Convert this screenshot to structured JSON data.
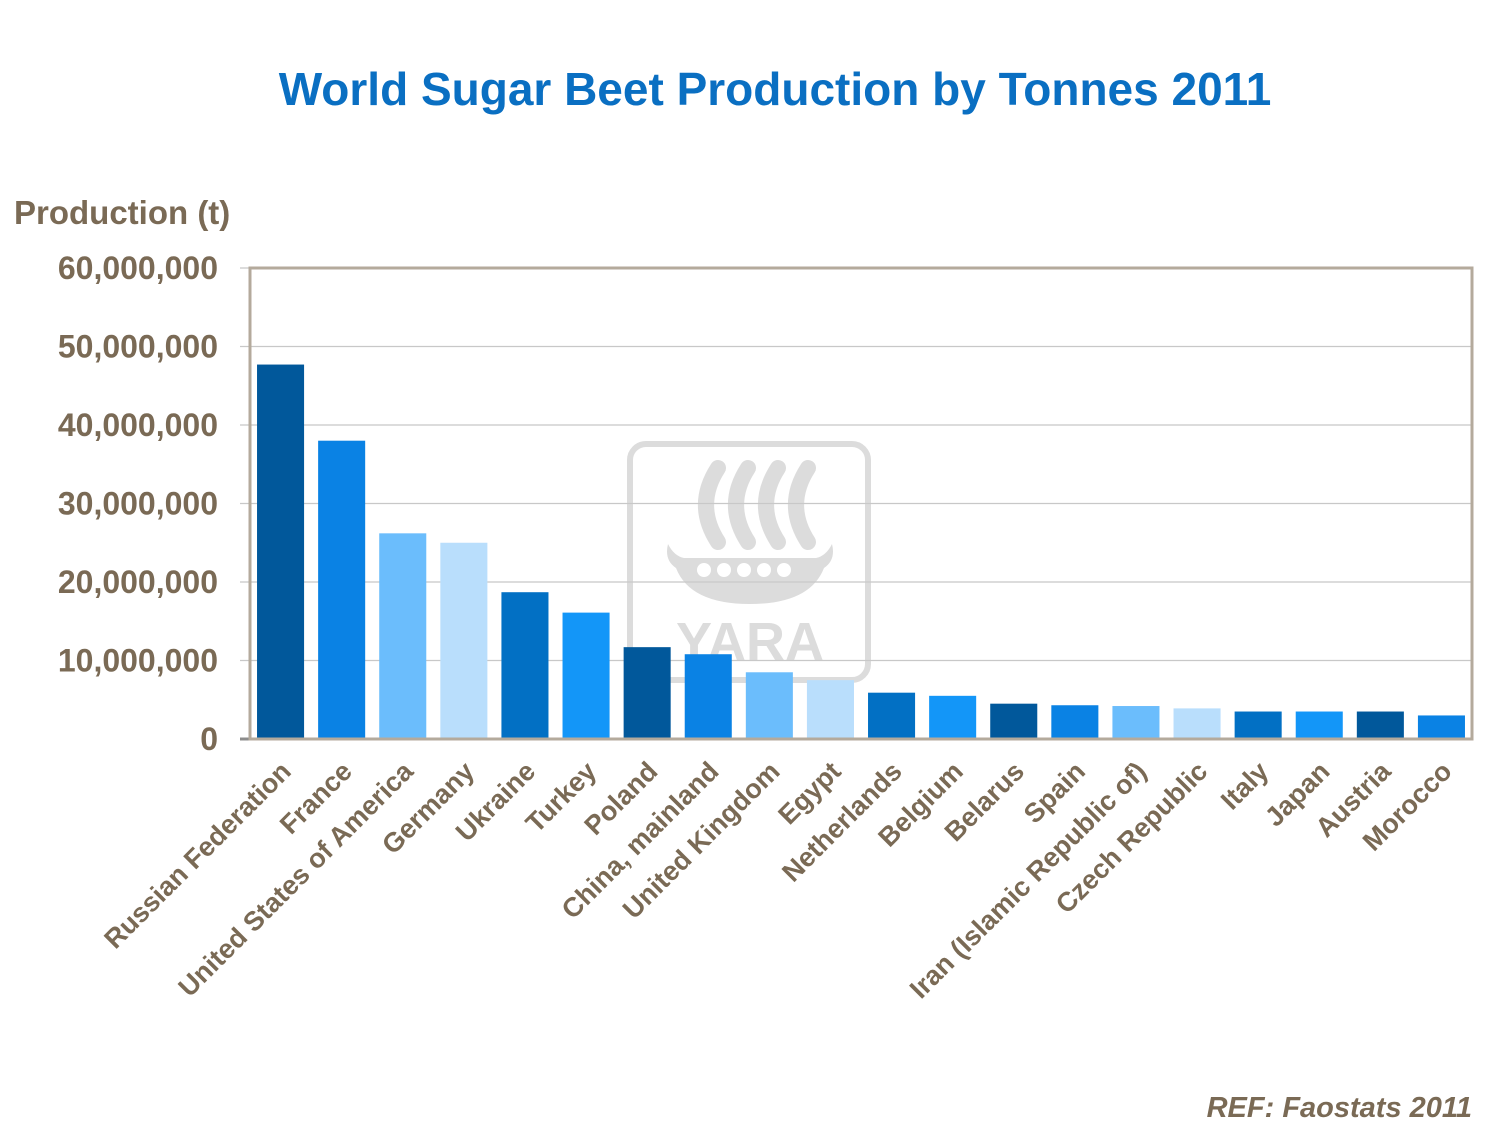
{
  "colors": {
    "title": "#0a6fc2",
    "axis_text": "#7a6a55",
    "grid": "#c8c8c8",
    "frame": "#b4aa9c",
    "watermark": "#dcdcdc",
    "bar_palette": [
      "#01589b",
      "#0a82e4",
      "#6bbdfc",
      "#b9defc",
      "#0270c4",
      "#1396f8"
    ]
  },
  "watermark": {
    "text": "YARA",
    "icon": "yara-viking-ship-logo"
  },
  "reference": "REF: Faostats 2011",
  "chart_data": {
    "type": "bar",
    "title": "World Sugar Beet Production by Tonnes 2011",
    "xlabel": "",
    "ylabel": "Production (t)",
    "ylim": [
      0,
      60000000
    ],
    "yticks": [
      0,
      10000000,
      20000000,
      30000000,
      40000000,
      50000000,
      60000000
    ],
    "ytick_labels": [
      "0",
      "10,000,000",
      "20,000,000",
      "30,000,000",
      "40,000,000",
      "50,000,000",
      "60,000,000"
    ],
    "grid": true,
    "categories": [
      "Russian Federation",
      "France",
      "United States of America",
      "Germany",
      "Ukraine",
      "Turkey",
      "Poland",
      "China, mainland",
      "United Kingdom",
      "Egypt",
      "Netherlands",
      "Belgium",
      "Belarus",
      "Spain",
      "Iran (Islamic Republic of)",
      "Czech Republic",
      "Italy",
      "Japan",
      "Austria",
      "Morocco"
    ],
    "values": [
      47700000,
      38000000,
      26200000,
      25000000,
      18700000,
      16100000,
      11700000,
      10800000,
      8500000,
      7500000,
      5900000,
      5500000,
      4500000,
      4300000,
      4200000,
      3900000,
      3500000,
      3500000,
      3500000,
      3000000
    ]
  }
}
